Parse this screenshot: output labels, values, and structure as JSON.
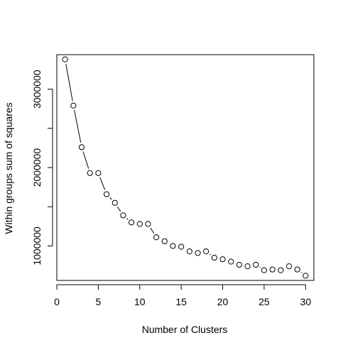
{
  "chart_data": {
    "type": "line",
    "title": "",
    "xlabel": "Number of Clusters",
    "ylabel": "Within groups sum of squares",
    "xlim": [
      0,
      31
    ],
    "ylim": [
      560000,
      3440000
    ],
    "x_ticks": [
      0,
      5,
      10,
      15,
      20,
      25,
      30
    ],
    "y_ticks": [
      1000000,
      2000000,
      3000000
    ],
    "y_tick_labels": [
      "1000000",
      "2000000",
      "3000000"
    ],
    "grid": false,
    "legend": "none",
    "marker": "open-circle",
    "line_style": "solid-broken-at-points",
    "colors": {
      "line": "#000000",
      "marker_stroke": "#000000",
      "marker_fill": "#ffffff"
    },
    "x": [
      1,
      2,
      3,
      4,
      5,
      6,
      7,
      8,
      9,
      10,
      11,
      12,
      13,
      14,
      15,
      16,
      17,
      18,
      19,
      20,
      21,
      22,
      23,
      24,
      25,
      26,
      27,
      28,
      29,
      30
    ],
    "values": [
      3380000,
      2790000,
      2260000,
      1930000,
      1930000,
      1660000,
      1550000,
      1390000,
      1300000,
      1280000,
      1280000,
      1110000,
      1060000,
      1000000,
      990000,
      930000,
      910000,
      930000,
      850000,
      830000,
      800000,
      760000,
      740000,
      760000,
      690000,
      700000,
      690000,
      740000,
      700000,
      620000
    ]
  }
}
